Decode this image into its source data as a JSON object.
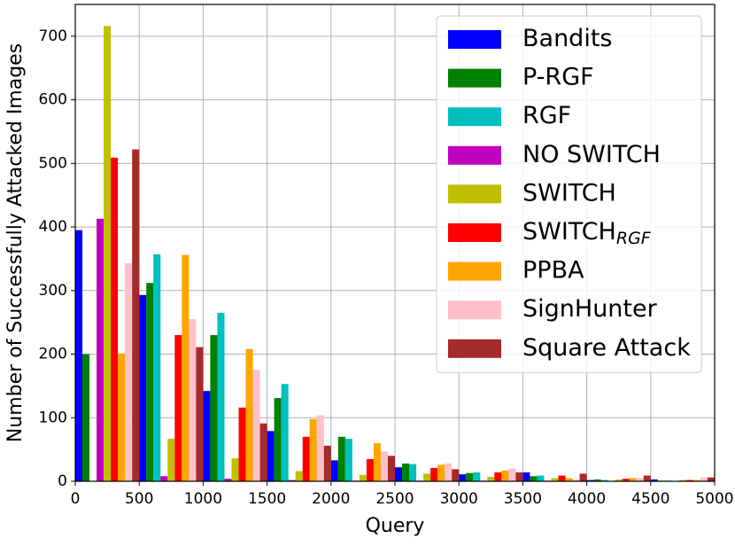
{
  "chart_data": {
    "type": "histogram",
    "x_label": "Query",
    "y_label": "Number of Successfully Attacked Images",
    "bins": [
      0,
      500,
      1000,
      1500,
      2000,
      2500,
      3000,
      3500,
      4000,
      4500,
      5000
    ],
    "series": [
      {
        "name": "Bandits",
        "color": "#0000ff",
        "values": [
          395,
          293,
          142,
          79,
          33,
          22,
          11,
          14,
          2,
          3
        ]
      },
      {
        "name": "P-RGF",
        "color": "#008000",
        "values": [
          200,
          312,
          230,
          131,
          70,
          28,
          13,
          8,
          3,
          1
        ]
      },
      {
        "name": "RGF",
        "color": "#00bfbf",
        "values": [
          0,
          357,
          265,
          153,
          67,
          27,
          14,
          9,
          2,
          1
        ]
      },
      {
        "name": "NO SWITCH",
        "color": "#bf00bf",
        "values": [
          413,
          8,
          4,
          2,
          1,
          1,
          1,
          1,
          0,
          0
        ]
      },
      {
        "name": "SWITCH",
        "color": "#bfbf00",
        "values": [
          716,
          67,
          36,
          16,
          10,
          12,
          7,
          5,
          3,
          2
        ]
      },
      {
        "name": "SWITCH",
        "subscript": "RGF",
        "color": "#ff0000",
        "values": [
          509,
          230,
          116,
          70,
          35,
          21,
          14,
          9,
          4,
          2
        ]
      },
      {
        "name": "PPBA",
        "color": "#ffa500",
        "values": [
          201,
          356,
          208,
          98,
          60,
          26,
          17,
          5,
          5,
          2
        ]
      },
      {
        "name": "SignHunter",
        "color": "#ffc0cb",
        "values": [
          343,
          255,
          175,
          104,
          47,
          28,
          20,
          3,
          5,
          6
        ]
      },
      {
        "name": "Square Attack",
        "color": "#a52a2a",
        "values": [
          522,
          211,
          91,
          56,
          40,
          19,
          14,
          12,
          9,
          6
        ]
      }
    ],
    "xlim": [
      0,
      5000
    ],
    "xticks": [
      0,
      500,
      1000,
      1500,
      2000,
      2500,
      3000,
      3500,
      4000,
      4500,
      5000
    ],
    "ylim": [
      0,
      750
    ],
    "yticks": [
      0,
      100,
      200,
      300,
      400,
      500,
      600,
      700
    ],
    "grid": true,
    "legend": "upper right"
  }
}
